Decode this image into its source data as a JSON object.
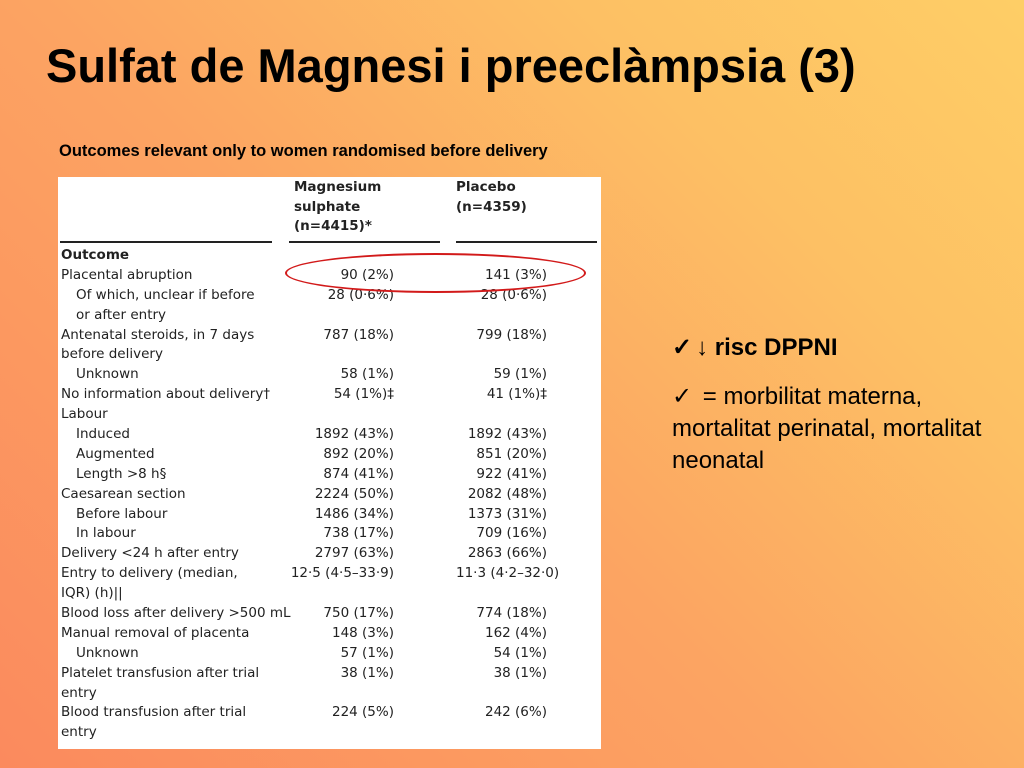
{
  "slide": {
    "title": "Sulfat de Magnesi i preeclàmpsia (3)",
    "subtitle": "Outcomes relevant only to women randomised before delivery"
  },
  "table": {
    "headers": {
      "magnesium": [
        "Magnesium",
        "sulphate",
        "(n=4415)*"
      ],
      "placebo": [
        "Placebo",
        "(n=4359)"
      ]
    },
    "rows": [
      {
        "label": "Outcome",
        "mg": "",
        "pl": "",
        "indent": false,
        "bold": true
      },
      {
        "label": "Placental abruption",
        "mg": "90 (2%)",
        "pl": "141 (3%)",
        "indent": false
      },
      {
        "label": "Of which, unclear if before",
        "mg": "28 (0·6%)",
        "pl": "28 (0·6%)",
        "indent": true
      },
      {
        "label": "or after entry",
        "mg": "",
        "pl": "",
        "indent": true
      },
      {
        "label": "Antenatal steroids, in 7 days",
        "mg": "787 (18%)",
        "pl": "799 (18%)",
        "indent": false
      },
      {
        "label": "before delivery",
        "mg": "",
        "pl": "",
        "indent": false
      },
      {
        "label": "Unknown",
        "mg": "58 (1%)",
        "pl": "59 (1%)",
        "indent": true
      },
      {
        "label": "No information about delivery†",
        "mg": "54 (1%)‡",
        "pl": "41 (1%)‡",
        "indent": false
      },
      {
        "label": "Labour",
        "mg": "",
        "pl": "",
        "indent": false
      },
      {
        "label": "Induced",
        "mg": "1892 (43%)",
        "pl": "1892 (43%)",
        "indent": true
      },
      {
        "label": "Augmented",
        "mg": "892 (20%)",
        "pl": "851 (20%)",
        "indent": true
      },
      {
        "label": "Length >8 h§",
        "mg": "874 (41%)",
        "pl": "922 (41%)",
        "indent": true
      },
      {
        "label": "Caesarean section",
        "mg": "2224 (50%)",
        "pl": "2082 (48%)",
        "indent": false
      },
      {
        "label": "Before labour",
        "mg": "1486 (34%)",
        "pl": "1373 (31%)",
        "indent": true
      },
      {
        "label": "In labour",
        "mg": "738 (17%)",
        "pl": "709 (16%)",
        "indent": true
      },
      {
        "label": "Delivery <24 h after entry",
        "mg": "2797 (63%)",
        "pl": "2863 (66%)",
        "indent": false
      },
      {
        "label": "Entry to delivery (median,",
        "mg": "12·5 (4·5–33·9)",
        "pl": "11·3 (4·2–32·0)",
        "indent": false
      },
      {
        "label": "IQR) (h)||",
        "mg": "",
        "pl": "",
        "indent": false
      },
      {
        "label": "Blood loss after delivery >500 mL",
        "mg": "750 (17%)",
        "pl": "774 (18%)",
        "indent": false
      },
      {
        "label": "Manual removal of placenta",
        "mg": "148 (3%)",
        "pl": "162 (4%)",
        "indent": false
      },
      {
        "label": "Unknown",
        "mg": "57 (1%)",
        "pl": "54 (1%)",
        "indent": true
      },
      {
        "label": "Platelet transfusion after trial",
        "mg": "38 (1%)",
        "pl": "38 (1%)",
        "indent": false
      },
      {
        "label": "entry",
        "mg": "",
        "pl": "",
        "indent": false
      },
      {
        "label": "Blood transfusion after trial",
        "mg": "224 (5%)",
        "pl": "242 (6%)",
        "indent": false
      },
      {
        "label": "entry",
        "mg": "",
        "pl": "",
        "indent": false
      }
    ]
  },
  "highlight": {
    "color": "#d21a1a"
  },
  "bullets": [
    {
      "check_icon": "✓",
      "text": "↓ risc DPPNI"
    },
    {
      "check_icon": "✓",
      "text": " = morbilitat materna, mortalitat perinatal, mortalitat neonatal"
    }
  ]
}
